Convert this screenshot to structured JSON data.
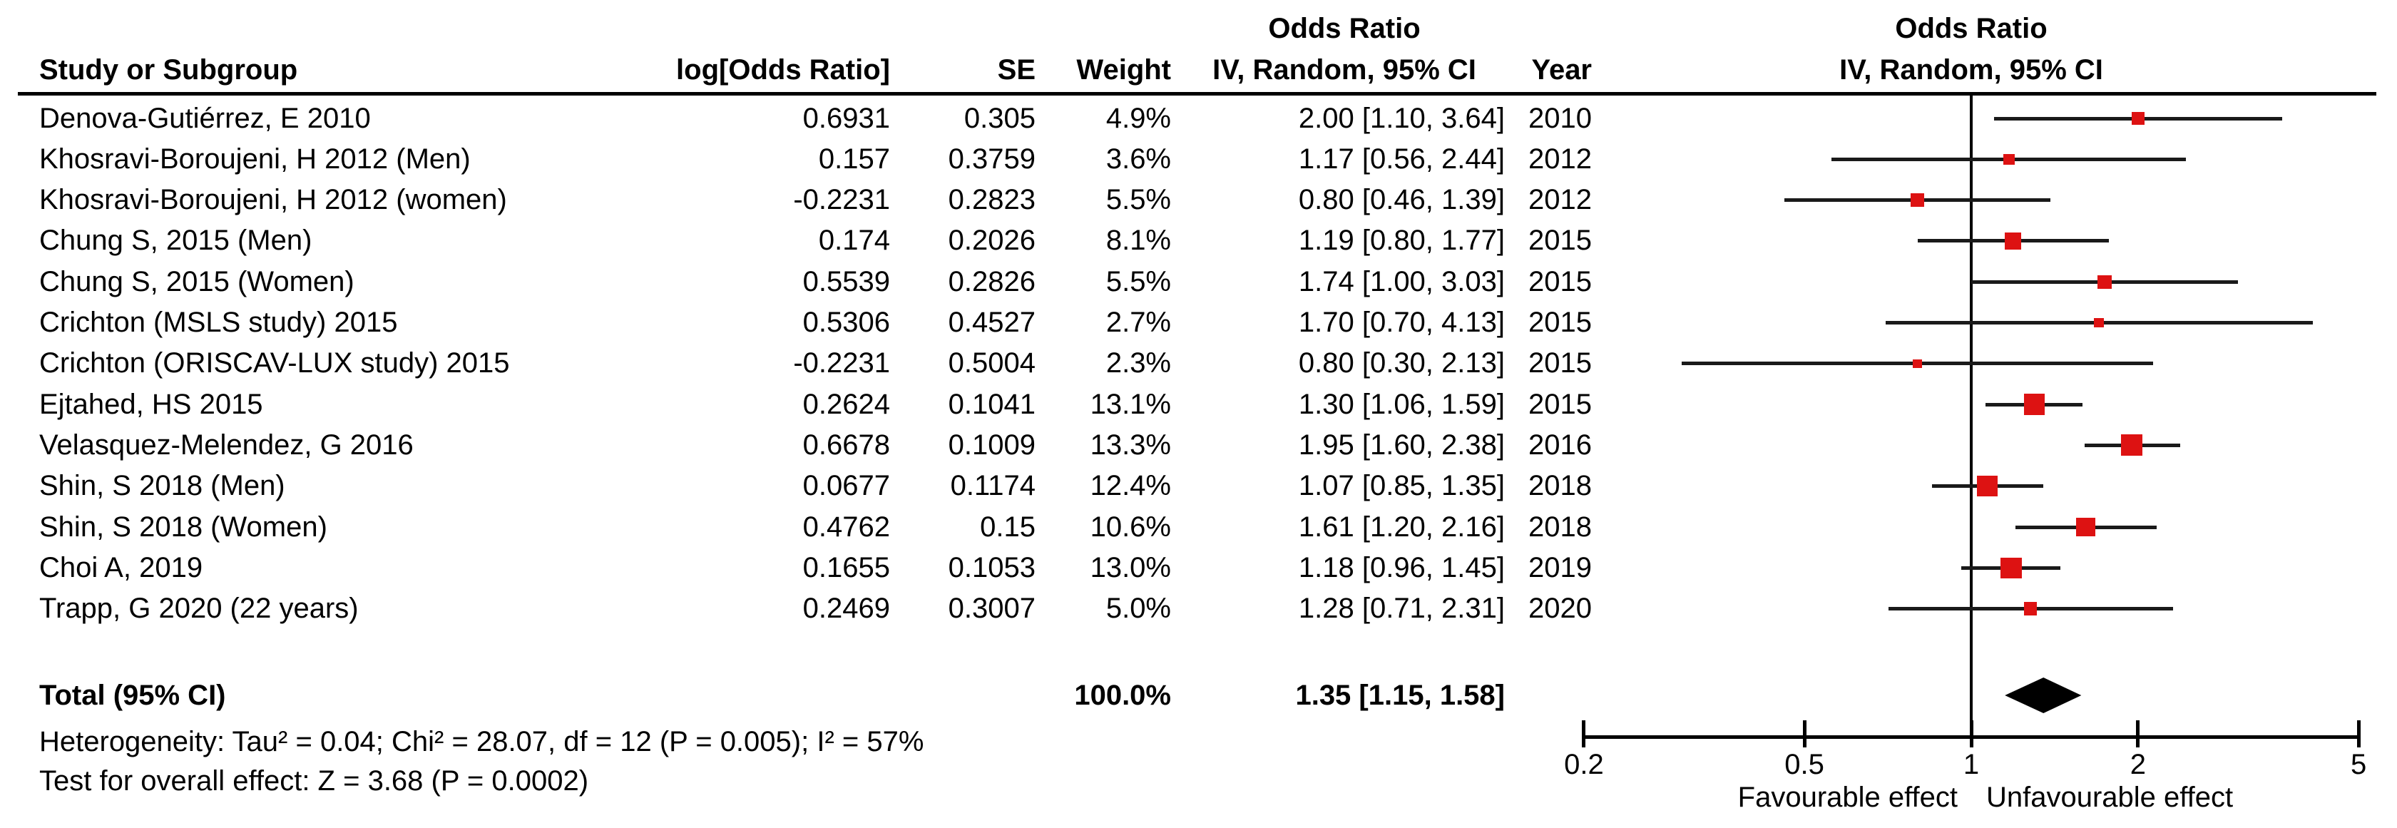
{
  "chart_data": {
    "type": "forest",
    "effect_measure": "Odds Ratio",
    "model": "IV, Random, 95% CI",
    "columns": {
      "study": "Study or Subgroup",
      "log_or": "log[Odds Ratio]",
      "se": "SE",
      "weight": "Weight",
      "effect_line1": "Odds Ratio",
      "effect_line2": "IV, Random, 95% CI",
      "year": "Year"
    },
    "plot_header": {
      "line1": "Odds Ratio",
      "line2": "IV, Random, 95% CI"
    },
    "studies": [
      {
        "name": "Denova-Gutiérrez, E 2010",
        "log_or": "0.6931",
        "se": "0.305",
        "weight": "4.9%",
        "weight_value": 4.9,
        "ci": "2.00 [1.10, 3.64]",
        "year": "2010",
        "or": 2.0,
        "lo": 1.1,
        "hi": 3.64
      },
      {
        "name": "Khosravi-Boroujeni, H 2012 (Men)",
        "log_or": "0.157",
        "se": "0.3759",
        "weight": "3.6%",
        "weight_value": 3.6,
        "ci": "1.17 [0.56, 2.44]",
        "year": "2012",
        "or": 1.17,
        "lo": 0.56,
        "hi": 2.44
      },
      {
        "name": "Khosravi-Boroujeni, H 2012 (women)",
        "log_or": "-0.2231",
        "se": "0.2823",
        "weight": "5.5%",
        "weight_value": 5.5,
        "ci": "0.80 [0.46, 1.39]",
        "year": "2012",
        "or": 0.8,
        "lo": 0.46,
        "hi": 1.39
      },
      {
        "name": "Chung S, 2015 (Men)",
        "log_or": "0.174",
        "se": "0.2026",
        "weight": "8.1%",
        "weight_value": 8.1,
        "ci": "1.19 [0.80, 1.77]",
        "year": "2015",
        "or": 1.19,
        "lo": 0.8,
        "hi": 1.77
      },
      {
        "name": "Chung S, 2015 (Women)",
        "log_or": "0.5539",
        "se": "0.2826",
        "weight": "5.5%",
        "weight_value": 5.5,
        "ci": "1.74 [1.00, 3.03]",
        "year": "2015",
        "or": 1.74,
        "lo": 1.0,
        "hi": 3.03
      },
      {
        "name": "Crichton (MSLS study) 2015",
        "log_or": "0.5306",
        "se": "0.4527",
        "weight": "2.7%",
        "weight_value": 2.7,
        "ci": "1.70 [0.70, 4.13]",
        "year": "2015",
        "or": 1.7,
        "lo": 0.7,
        "hi": 4.13
      },
      {
        "name": "Crichton (ORISCAV-LUX study) 2015",
        "log_or": "-0.2231",
        "se": "0.5004",
        "weight": "2.3%",
        "weight_value": 2.3,
        "ci": "0.80 [0.30, 2.13]",
        "year": "2015",
        "or": 0.8,
        "lo": 0.3,
        "hi": 2.13
      },
      {
        "name": "Ejtahed, HS 2015",
        "log_or": "0.2624",
        "se": "0.1041",
        "weight": "13.1%",
        "weight_value": 13.1,
        "ci": "1.30 [1.06, 1.59]",
        "year": "2015",
        "or": 1.3,
        "lo": 1.06,
        "hi": 1.59
      },
      {
        "name": "Velasquez-Melendez, G 2016",
        "log_or": "0.6678",
        "se": "0.1009",
        "weight": "13.3%",
        "weight_value": 13.3,
        "ci": "1.95 [1.60, 2.38]",
        "year": "2016",
        "or": 1.95,
        "lo": 1.6,
        "hi": 2.38
      },
      {
        "name": "Shin, S 2018 (Men)",
        "log_or": "0.0677",
        "se": "0.1174",
        "weight": "12.4%",
        "weight_value": 12.4,
        "ci": "1.07 [0.85, 1.35]",
        "year": "2018",
        "or": 1.07,
        "lo": 0.85,
        "hi": 1.35
      },
      {
        "name": "Shin, S 2018 (Women)",
        "log_or": "0.4762",
        "se": "0.15",
        "weight": "10.6%",
        "weight_value": 10.6,
        "ci": "1.61 [1.20, 2.16]",
        "year": "2018",
        "or": 1.61,
        "lo": 1.2,
        "hi": 2.16
      },
      {
        "name": "Choi A, 2019",
        "log_or": "0.1655",
        "se": "0.1053",
        "weight": "13.0%",
        "weight_value": 13.0,
        "ci": "1.18 [0.96, 1.45]",
        "year": "2019",
        "or": 1.18,
        "lo": 0.96,
        "hi": 1.45
      },
      {
        "name": "Trapp, G 2020 (22 years)",
        "log_or": "0.2469",
        "se": "0.3007",
        "weight": "5.0%",
        "weight_value": 5.0,
        "ci": "1.28 [0.71, 2.31]",
        "year": "2020",
        "or": 1.28,
        "lo": 0.71,
        "hi": 2.31
      }
    ],
    "total": {
      "label": "Total (95% CI)",
      "weight": "100.0%",
      "ci": "1.35 [1.15, 1.58]",
      "or": 1.35,
      "lo": 1.15,
      "hi": 1.58
    },
    "heterogeneity": "Heterogeneity: Tau² = 0.04; Chi² = 28.07, df = 12 (P = 0.005); I² = 57%",
    "overall_effect": "Test for overall effect: Z = 3.68 (P = 0.0002)",
    "axis": {
      "scale": "log",
      "ticks": [
        "0.2",
        "0.5",
        "1",
        "2",
        "5"
      ],
      "tick_values": [
        0.2,
        0.5,
        1,
        2,
        5
      ],
      "range": [
        0.2,
        5
      ],
      "label_favourable": "Favourable effect",
      "label_unfavourable": "Unfavourable effect"
    },
    "colors": {
      "marker": "#dd1212",
      "ci_line": "#1a1a1a",
      "diamond": "#000000"
    }
  }
}
